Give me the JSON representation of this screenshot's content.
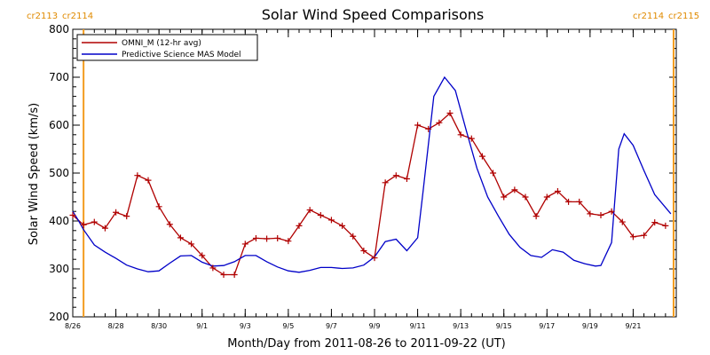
{
  "chart_data": {
    "type": "line",
    "title": "Solar Wind Speed Comparisons",
    "xlabel": "Month/Day from 2011-08-26 to 2011-09-22 (UT)",
    "ylabel": "Solar Wind Speed (km/s)",
    "xlim": [
      "2011-08-26",
      "2011-09-23"
    ],
    "ylim": [
      200,
      800
    ],
    "yticks": [
      200,
      300,
      400,
      500,
      600,
      700,
      800
    ],
    "xticks": [
      {
        "date": "2011-08-26",
        "label": "8/26"
      },
      {
        "date": "2011-08-28",
        "label": "8/28"
      },
      {
        "date": "2011-08-30",
        "label": "8/30"
      },
      {
        "date": "2011-09-01",
        "label": "9/1"
      },
      {
        "date": "2011-09-03",
        "label": "9/3"
      },
      {
        "date": "2011-09-05",
        "label": "9/5"
      },
      {
        "date": "2011-09-07",
        "label": "9/7"
      },
      {
        "date": "2011-09-09",
        "label": "9/9"
      },
      {
        "date": "2011-09-11",
        "label": "9/11"
      },
      {
        "date": "2011-09-13",
        "label": "9/13"
      },
      {
        "date": "2011-09-15",
        "label": "9/15"
      },
      {
        "date": "2011-09-17",
        "label": "9/17"
      },
      {
        "date": "2011-09-19",
        "label": "9/19"
      },
      {
        "date": "2011-09-21",
        "label": "9/21"
      }
    ],
    "legend_position": "top-left",
    "carrington_markers": [
      {
        "date": "2011-08-26T12:00",
        "label_left": "cr2113",
        "label_right": "cr2114"
      },
      {
        "date": "2011-09-22T21:00",
        "label_left": "cr2114",
        "label_right": "cr2115"
      }
    ],
    "series": [
      {
        "name": "OMNI_M (12-hr avg)",
        "color": "#b00000",
        "marker": "plus",
        "points": [
          [
            "2011-08-26T00:00",
            412
          ],
          [
            "2011-08-26T12:00",
            392
          ],
          [
            "2011-08-27T00:00",
            398
          ],
          [
            "2011-08-27T12:00",
            385
          ],
          [
            "2011-08-28T00:00",
            418
          ],
          [
            "2011-08-28T12:00",
            410
          ],
          [
            "2011-08-29T00:00",
            495
          ],
          [
            "2011-08-29T12:00",
            485
          ],
          [
            "2011-08-30T00:00",
            430
          ],
          [
            "2011-08-30T12:00",
            393
          ],
          [
            "2011-08-31T00:00",
            365
          ],
          [
            "2011-08-31T12:00",
            352
          ],
          [
            "2011-09-01T00:00",
            328
          ],
          [
            "2011-09-01T12:00",
            302
          ],
          [
            "2011-09-02T00:00",
            288
          ],
          [
            "2011-09-02T12:00",
            288
          ],
          [
            "2011-09-03T00:00",
            352
          ],
          [
            "2011-09-03T12:00",
            364
          ],
          [
            "2011-09-04T00:00",
            363
          ],
          [
            "2011-09-04T12:00",
            364
          ],
          [
            "2011-09-05T00:00",
            358
          ],
          [
            "2011-09-05T12:00",
            390
          ],
          [
            "2011-09-06T00:00",
            423
          ],
          [
            "2011-09-06T12:00",
            412
          ],
          [
            "2011-09-07T00:00",
            402
          ],
          [
            "2011-09-07T12:00",
            390
          ],
          [
            "2011-09-08T00:00",
            368
          ],
          [
            "2011-09-08T12:00",
            338
          ],
          [
            "2011-09-09T00:00",
            323
          ],
          [
            "2011-09-09T12:00",
            480
          ],
          [
            "2011-09-10T00:00",
            495
          ],
          [
            "2011-09-10T12:00",
            488
          ],
          [
            "2011-09-11T00:00",
            600
          ],
          [
            "2011-09-11T12:00",
            592
          ],
          [
            "2011-09-12T00:00",
            605
          ],
          [
            "2011-09-12T12:00",
            625
          ],
          [
            "2011-09-13T00:00",
            580
          ],
          [
            "2011-09-13T12:00",
            572
          ],
          [
            "2011-09-14T00:00",
            535
          ],
          [
            "2011-09-14T12:00",
            500
          ],
          [
            "2011-09-15T00:00",
            450
          ],
          [
            "2011-09-15T12:00",
            465
          ],
          [
            "2011-09-16T00:00",
            450
          ],
          [
            "2011-09-16T12:00",
            410
          ],
          [
            "2011-09-17T00:00",
            450
          ],
          [
            "2011-09-17T12:00",
            462
          ],
          [
            "2011-09-18T00:00",
            440
          ],
          [
            "2011-09-18T12:00",
            440
          ],
          [
            "2011-09-19T00:00",
            415
          ],
          [
            "2011-09-19T12:00",
            412
          ],
          [
            "2011-09-20T00:00",
            420
          ],
          [
            "2011-09-20T12:00",
            398
          ],
          [
            "2011-09-21T00:00",
            367
          ],
          [
            "2011-09-21T12:00",
            370
          ],
          [
            "2011-09-22T00:00",
            397
          ],
          [
            "2011-09-22T12:00",
            390
          ]
        ]
      },
      {
        "name": "Predictive Science MAS Model",
        "color": "#0000c8",
        "marker": "none",
        "points": [
          [
            "2011-08-26T00:00",
            420
          ],
          [
            "2011-08-26T06:00",
            402
          ],
          [
            "2011-08-26T12:00",
            382
          ],
          [
            "2011-08-27T00:00",
            350
          ],
          [
            "2011-08-27T12:00",
            335
          ],
          [
            "2011-08-28T00:00",
            322
          ],
          [
            "2011-08-28T12:00",
            308
          ],
          [
            "2011-08-29T00:00",
            300
          ],
          [
            "2011-08-29T12:00",
            294
          ],
          [
            "2011-08-30T00:00",
            296
          ],
          [
            "2011-08-30T12:00",
            312
          ],
          [
            "2011-08-31T00:00",
            327
          ],
          [
            "2011-08-31T12:00",
            328
          ],
          [
            "2011-09-01T00:00",
            314
          ],
          [
            "2011-09-01T12:00",
            306
          ],
          [
            "2011-09-02T00:00",
            307
          ],
          [
            "2011-09-02T12:00",
            315
          ],
          [
            "2011-09-03T00:00",
            328
          ],
          [
            "2011-09-03T12:00",
            328
          ],
          [
            "2011-09-04T00:00",
            315
          ],
          [
            "2011-09-04T12:00",
            304
          ],
          [
            "2011-09-05T00:00",
            296
          ],
          [
            "2011-09-05T12:00",
            293
          ],
          [
            "2011-09-06T00:00",
            297
          ],
          [
            "2011-09-06T12:00",
            303
          ],
          [
            "2011-09-07T00:00",
            303
          ],
          [
            "2011-09-07T12:00",
            301
          ],
          [
            "2011-09-08T00:00",
            302
          ],
          [
            "2011-09-08T12:00",
            308
          ],
          [
            "2011-09-09T00:00",
            325
          ],
          [
            "2011-09-09T12:00",
            357
          ],
          [
            "2011-09-10T00:00",
            362
          ],
          [
            "2011-09-10T12:00",
            338
          ],
          [
            "2011-09-11T00:00",
            365
          ],
          [
            "2011-09-11T06:00",
            460
          ],
          [
            "2011-09-11T18:00",
            660
          ],
          [
            "2011-09-12T06:00",
            700
          ],
          [
            "2011-09-12T18:00",
            672
          ],
          [
            "2011-09-13T06:00",
            590
          ],
          [
            "2011-09-13T18:00",
            510
          ],
          [
            "2011-09-14T06:00",
            450
          ],
          [
            "2011-09-14T18:00",
            410
          ],
          [
            "2011-09-15T06:00",
            372
          ],
          [
            "2011-09-15T18:00",
            345
          ],
          [
            "2011-09-16T06:00",
            328
          ],
          [
            "2011-09-16T18:00",
            324
          ],
          [
            "2011-09-17T06:00",
            340
          ],
          [
            "2011-09-17T18:00",
            335
          ],
          [
            "2011-09-18T06:00",
            318
          ],
          [
            "2011-09-18T18:00",
            311
          ],
          [
            "2011-09-19T06:00",
            306
          ],
          [
            "2011-09-19T12:00",
            307
          ],
          [
            "2011-09-20T00:00",
            355
          ],
          [
            "2011-09-20T08:00",
            550
          ],
          [
            "2011-09-20T14:00",
            582
          ],
          [
            "2011-09-21T00:00",
            558
          ],
          [
            "2011-09-21T12:00",
            505
          ],
          [
            "2011-09-22T00:00",
            455
          ],
          [
            "2011-09-22T18:00",
            415
          ]
        ]
      }
    ]
  }
}
